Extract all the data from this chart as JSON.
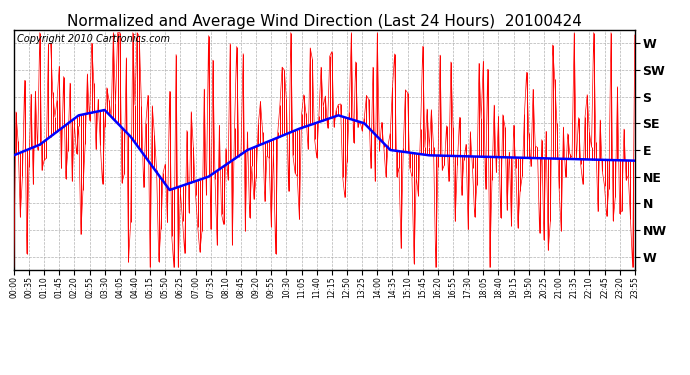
{
  "title": "Normalized and Average Wind Direction (Last 24 Hours)  20100424",
  "copyright": "Copyright 2010 Cartronics.com",
  "ytick_labels": [
    "W",
    "SW",
    "S",
    "SE",
    "E",
    "NE",
    "N",
    "NW",
    "W"
  ],
  "ytick_values": [
    8,
    7,
    6,
    5,
    4,
    3,
    2,
    1,
    0
  ],
  "ymin": -0.5,
  "ymax": 8.5,
  "bg_color": "#ffffff",
  "plot_bg_color": "#ffffff",
  "grid_color": "#aaaaaa",
  "red_color": "#ff0000",
  "blue_color": "#0000ff",
  "title_fontsize": 11,
  "copyright_fontsize": 7,
  "xtick_step": 7,
  "n_points": 288
}
